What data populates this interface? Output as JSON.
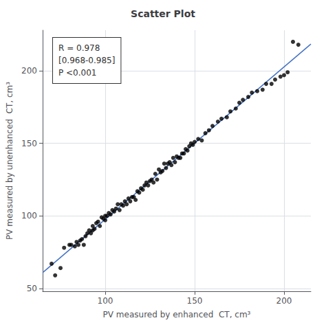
{
  "chart_data": {
    "type": "scatter",
    "title": "Scatter Plot",
    "xlabel": "PV measured by enhanced  CT, cm³",
    "ylabel": "PV measured by unenhanced  CT, cm³",
    "annotation": "R = 0.978\n[0.968-0.985]\nP <0.001",
    "x": [
      70,
      72,
      75,
      77,
      80,
      81,
      83,
      84,
      85,
      86,
      87,
      88,
      89,
      90,
      91,
      92,
      93,
      93,
      94,
      95,
      96,
      97,
      98,
      99,
      100,
      100,
      101,
      102,
      103,
      104,
      105,
      106,
      107,
      108,
      109,
      110,
      111,
      112,
      113,
      114,
      115,
      116,
      117,
      118,
      119,
      120,
      121,
      122,
      123,
      124,
      125,
      126,
      127,
      128,
      129,
      130,
      131,
      132,
      133,
      134,
      135,
      136,
      137,
      138,
      139,
      140,
      141,
      142,
      143,
      144,
      145,
      146,
      147,
      148,
      149,
      150,
      152,
      154,
      156,
      158,
      160,
      163,
      165,
      168,
      170,
      173,
      175,
      177,
      180,
      182,
      185,
      188,
      190,
      193,
      195,
      198,
      200,
      202,
      205,
      208
    ],
    "values": [
      67,
      59,
      64,
      78,
      80,
      80,
      79,
      82,
      80,
      83,
      84,
      80,
      86,
      88,
      90,
      88,
      93,
      90,
      91,
      95,
      96,
      93,
      99,
      98,
      97,
      100,
      100,
      102,
      101,
      104,
      103,
      105,
      108,
      104,
      108,
      107,
      110,
      108,
      112,
      110,
      113,
      113,
      111,
      117,
      116,
      119,
      118,
      121,
      123,
      121,
      124,
      125,
      123,
      129,
      125,
      132,
      130,
      131,
      136,
      133,
      136,
      137,
      135,
      140,
      137,
      141,
      140,
      140,
      143,
      143,
      146,
      145,
      148,
      150,
      149,
      151,
      153,
      152,
      157,
      159,
      162,
      165,
      167,
      168,
      172,
      174,
      178,
      180,
      182,
      185,
      186,
      187,
      191,
      191,
      194,
      196,
      197,
      199,
      220,
      218
    ],
    "color": "#000000",
    "regression_line": {
      "type": "line",
      "x": [
        65,
        215
      ],
      "values": [
        60.8694,
        218.4568
      ],
      "color": "#4472C4"
    },
    "xlim": [
      65,
      215
    ],
    "ylim": [
      48,
      228
    ],
    "xticks": [
      100,
      150,
      200
    ],
    "yticks": [
      50,
      100,
      150,
      200
    ],
    "grid": true
  }
}
